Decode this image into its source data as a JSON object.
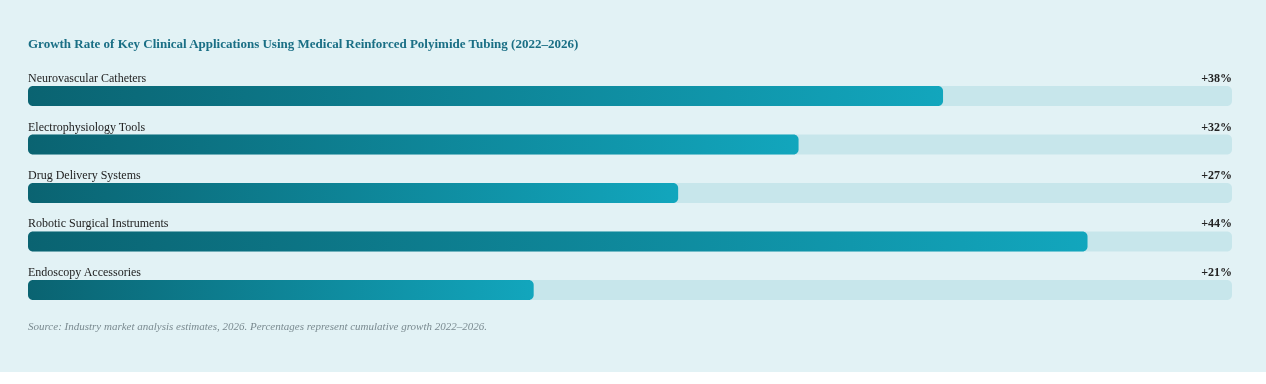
{
  "chart_data": {
    "type": "bar",
    "orientation": "horizontal",
    "title": "Growth Rate of Key Clinical Applications Using Medical Reinforced Polyimide Tubing (2022–2026)",
    "categories": [
      "Neurovascular Catheters",
      "Electrophysiology Tools",
      "Drug Delivery Systems",
      "Robotic Surgical Instruments",
      "Endoscopy Accessories"
    ],
    "series": [
      {
        "color": "#12a6bd",
        "values": [
          38,
          32,
          27,
          44,
          21
        ],
        "value_labels": [
          "+38%",
          "+32%",
          "+27%",
          "+44%",
          "+21%"
        ]
      }
    ],
    "xlim": [
      0,
      50
    ],
    "tick_labels": false,
    "annotations": [
      "Source: Industry market analysis estimates, 2026. Percentages represent cumulative growth 2022–2026."
    ]
  }
}
